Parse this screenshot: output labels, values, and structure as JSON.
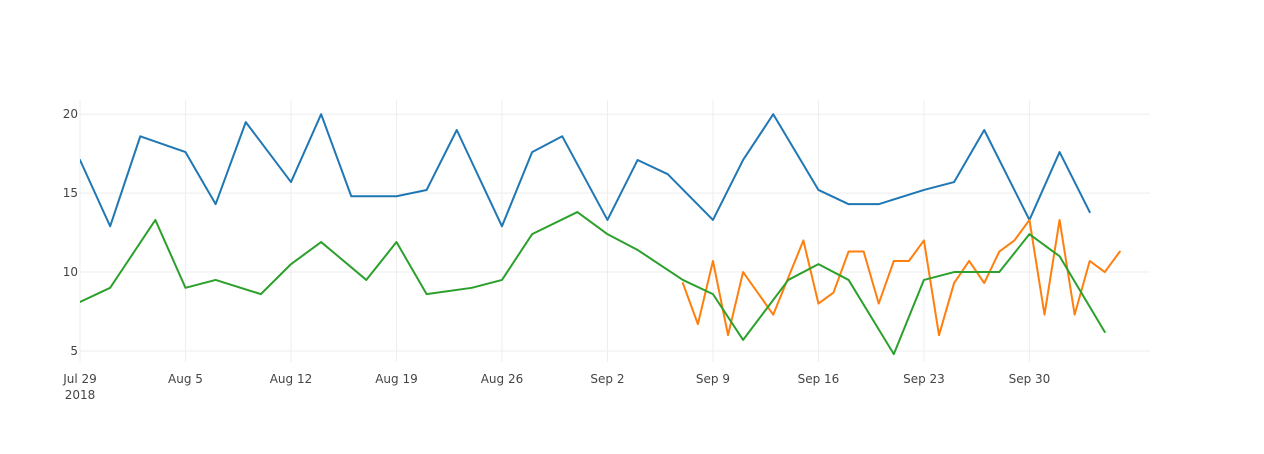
{
  "chart_data": {
    "type": "line",
    "title": "",
    "xlabel": "",
    "ylabel": "",
    "x_axis": {
      "type": "date",
      "range": [
        "2018-07-29",
        "2018-10-08"
      ],
      "ticks": [
        {
          "date": "2018-07-29",
          "label": "Jul 29",
          "sublabel": "2018"
        },
        {
          "date": "2018-08-05",
          "label": "Aug 5"
        },
        {
          "date": "2018-08-12",
          "label": "Aug 12"
        },
        {
          "date": "2018-08-19",
          "label": "Aug 19"
        },
        {
          "date": "2018-08-26",
          "label": "Aug 26"
        },
        {
          "date": "2018-09-02",
          "label": "Sep 2"
        },
        {
          "date": "2018-09-09",
          "label": "Sep 9"
        },
        {
          "date": "2018-09-16",
          "label": "Sep 16"
        },
        {
          "date": "2018-09-23",
          "label": "Sep 23"
        },
        {
          "date": "2018-09-30",
          "label": "Sep 30"
        }
      ]
    },
    "y_axis": {
      "range": [
        4.3,
        20.9
      ],
      "ticks": [
        5,
        10,
        15,
        20
      ]
    },
    "grid": true,
    "series": [
      {
        "color": "#1f77b4",
        "points": [
          [
            "2018-07-29",
            17.1
          ],
          [
            "2018-07-31",
            12.9
          ],
          [
            "2018-08-02",
            18.6
          ],
          [
            "2018-08-05",
            17.6
          ],
          [
            "2018-08-07",
            14.3
          ],
          [
            "2018-08-09",
            19.5
          ],
          [
            "2018-08-12",
            15.7
          ],
          [
            "2018-08-14",
            20.0
          ],
          [
            "2018-08-16",
            14.8
          ],
          [
            "2018-08-19",
            14.8
          ],
          [
            "2018-08-21",
            15.2
          ],
          [
            "2018-08-23",
            19.0
          ],
          [
            "2018-08-26",
            12.9
          ],
          [
            "2018-08-28",
            17.6
          ],
          [
            "2018-08-30",
            18.6
          ],
          [
            "2018-09-02",
            13.3
          ],
          [
            "2018-09-04",
            17.1
          ],
          [
            "2018-09-06",
            16.2
          ],
          [
            "2018-09-09",
            13.3
          ],
          [
            "2018-09-11",
            17.1
          ],
          [
            "2018-09-13",
            20.0
          ],
          [
            "2018-09-16",
            15.2
          ],
          [
            "2018-09-18",
            14.3
          ],
          [
            "2018-09-20",
            14.3
          ],
          [
            "2018-09-23",
            15.2
          ],
          [
            "2018-09-25",
            15.7
          ],
          [
            "2018-09-27",
            19.0
          ],
          [
            "2018-09-30",
            13.3
          ],
          [
            "2018-10-02",
            17.6
          ],
          [
            "2018-10-04",
            13.8
          ]
        ]
      },
      {
        "color": "#ff7f0e",
        "points": [
          [
            "2018-09-07",
            9.3
          ],
          [
            "2018-09-08",
            6.7
          ],
          [
            "2018-09-09",
            10.7
          ],
          [
            "2018-09-10",
            6.0
          ],
          [
            "2018-09-11",
            10.0
          ],
          [
            "2018-09-13",
            7.3
          ],
          [
            "2018-09-15",
            12.0
          ],
          [
            "2018-09-16",
            8.0
          ],
          [
            "2018-09-17",
            8.7
          ],
          [
            "2018-09-18",
            11.3
          ],
          [
            "2018-09-19",
            11.3
          ],
          [
            "2018-09-20",
            8.0
          ],
          [
            "2018-09-21",
            10.7
          ],
          [
            "2018-09-22",
            10.7
          ],
          [
            "2018-09-23",
            12.0
          ],
          [
            "2018-09-24",
            6.0
          ],
          [
            "2018-09-25",
            9.3
          ],
          [
            "2018-09-26",
            10.7
          ],
          [
            "2018-09-27",
            9.3
          ],
          [
            "2018-09-28",
            11.3
          ],
          [
            "2018-09-29",
            12.0
          ],
          [
            "2018-09-30",
            13.3
          ],
          [
            "2018-10-01",
            7.3
          ],
          [
            "2018-10-02",
            13.3
          ],
          [
            "2018-10-03",
            7.3
          ],
          [
            "2018-10-04",
            10.7
          ],
          [
            "2018-10-05",
            10.0
          ],
          [
            "2018-10-06",
            11.3
          ]
        ]
      },
      {
        "color": "#2ca02c",
        "points": [
          [
            "2018-07-29",
            8.1
          ],
          [
            "2018-07-31",
            9.0
          ],
          [
            "2018-08-03",
            13.3
          ],
          [
            "2018-08-05",
            9.0
          ],
          [
            "2018-08-07",
            9.5
          ],
          [
            "2018-08-10",
            8.6
          ],
          [
            "2018-08-12",
            10.5
          ],
          [
            "2018-08-14",
            11.9
          ],
          [
            "2018-08-17",
            9.5
          ],
          [
            "2018-08-19",
            11.9
          ],
          [
            "2018-08-21",
            8.6
          ],
          [
            "2018-08-24",
            9.0
          ],
          [
            "2018-08-26",
            9.5
          ],
          [
            "2018-08-28",
            12.4
          ],
          [
            "2018-08-31",
            13.8
          ],
          [
            "2018-09-02",
            12.4
          ],
          [
            "2018-09-04",
            11.4
          ],
          [
            "2018-09-07",
            9.5
          ],
          [
            "2018-09-09",
            8.6
          ],
          [
            "2018-09-11",
            5.7
          ],
          [
            "2018-09-14",
            9.5
          ],
          [
            "2018-09-16",
            10.5
          ],
          [
            "2018-09-18",
            9.5
          ],
          [
            "2018-09-21",
            4.8
          ],
          [
            "2018-09-23",
            9.5
          ],
          [
            "2018-09-25",
            10.0
          ],
          [
            "2018-09-28",
            10.0
          ],
          [
            "2018-09-30",
            12.4
          ],
          [
            "2018-10-02",
            11.0
          ],
          [
            "2018-10-05",
            6.2
          ]
        ]
      }
    ]
  }
}
